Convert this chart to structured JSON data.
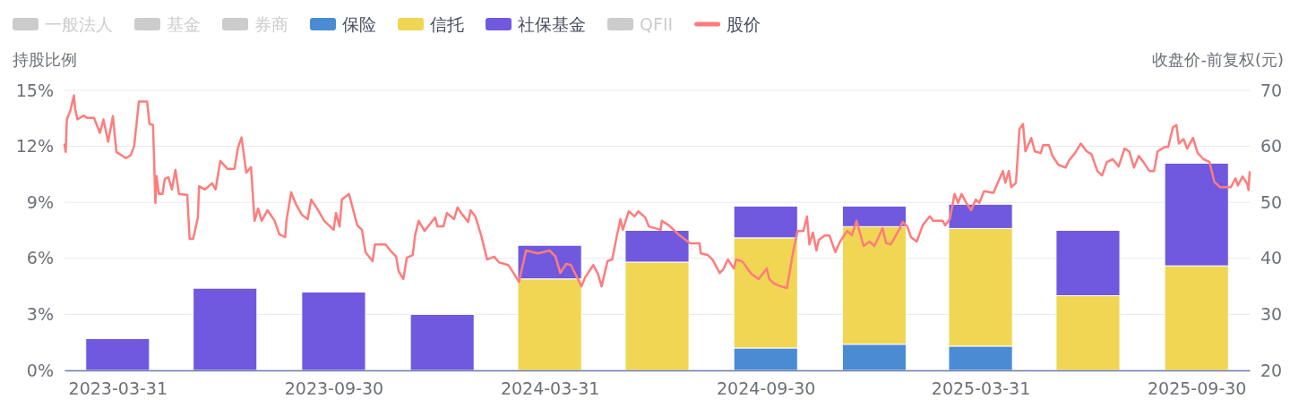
{
  "chart_data": {
    "type": "bar",
    "stacked": true,
    "ylabel": "持股比例",
    "y2label": "收盘价-前复权(元)",
    "x": [
      "2023-03-31",
      "2023-06-30",
      "2023-09-30",
      "2023-12-31",
      "2024-03-31",
      "2024-06-30",
      "2024-09-30",
      "2024-12-31",
      "2025-03-31",
      "2025-06-30",
      "2025-09-30"
    ],
    "xlim": [
      "2023-02-14",
      "2025-11-14"
    ],
    "xticks": [
      "2023-03-31",
      "2023-09-30",
      "2024-03-31",
      "2024-09-30",
      "2025-03-31",
      "2025-09-30"
    ],
    "ylim": [
      0,
      15
    ],
    "yticks": [
      {
        "value": 0,
        "label": "0%"
      },
      {
        "value": 3,
        "label": "3%"
      },
      {
        "value": 6,
        "label": "6%"
      },
      {
        "value": 9,
        "label": "9%"
      },
      {
        "value": 12,
        "label": "12%"
      },
      {
        "value": 15,
        "label": "15%"
      }
    ],
    "y2lim": [
      20,
      70
    ],
    "y2ticks": [
      20,
      30,
      40,
      50,
      60,
      70
    ],
    "grid": "y",
    "legend": "top left",
    "series": [
      {
        "name": "一般法人",
        "color": "#cccccc",
        "values": [
          null,
          null,
          null,
          null,
          null,
          null,
          null,
          null,
          null,
          null,
          null
        ]
      },
      {
        "name": "基金",
        "color": "#cccccc",
        "values": [
          null,
          null,
          null,
          null,
          null,
          null,
          null,
          null,
          null,
          null,
          null
        ]
      },
      {
        "name": "券商",
        "color": "#cccccc",
        "values": [
          null,
          null,
          null,
          null,
          null,
          null,
          null,
          null,
          null,
          null,
          null
        ]
      },
      {
        "name": "保险",
        "color": "#4a8bd4",
        "values": [
          null,
          null,
          null,
          null,
          null,
          null,
          1.2,
          1.4,
          1.3,
          null,
          null
        ]
      },
      {
        "name": "信托",
        "color": "#f0d653",
        "values": [
          null,
          null,
          null,
          null,
          4.9,
          5.8,
          5.9,
          6.3,
          6.3,
          4.0,
          5.6
        ]
      },
      {
        "name": "社保基金",
        "color": "#7059df",
        "values": [
          1.7,
          4.4,
          4.2,
          3.0,
          1.8,
          1.7,
          1.7,
          1.1,
          1.3,
          3.5,
          5.5
        ]
      },
      {
        "name": "QFII",
        "color": "#cccccc",
        "values": [
          null,
          null,
          null,
          null,
          null,
          null,
          null,
          null,
          null,
          null,
          null
        ]
      },
      {
        "name": "股价",
        "type": "line",
        "axis": "y2",
        "color": "#ff7c7c",
        "marker": "none",
        "x": [
          "2023-02-14",
          "2023-02-15",
          "2023-02-16",
          "2023-02-19",
          "2023-02-22",
          "2023-02-23",
          "2023-02-25",
          "2023-03-02",
          "2023-03-05",
          "2023-03-11",
          "2023-03-16",
          "2023-03-19",
          "2023-03-23",
          "2023-03-27",
          "2023-03-30",
          "2023-04-07",
          "2023-04-11",
          "2023-04-14",
          "2023-04-18",
          "2023-04-25",
          "2023-04-27",
          "2023-04-30",
          "2023-05-02",
          "2023-05-03",
          "2023-05-05",
          "2023-05-08",
          "2023-05-10",
          "2023-05-13",
          "2023-05-16",
          "2023-05-19",
          "2023-05-22",
          "2023-05-29",
          "2023-05-31",
          "2023-06-03",
          "2023-06-07",
          "2023-06-08",
          "2023-06-13",
          "2023-06-19",
          "2023-06-22",
          "2023-06-26",
          "2023-07-02",
          "2023-07-08",
          "2023-07-11",
          "2023-07-14",
          "2023-07-18",
          "2023-07-22",
          "2023-07-25",
          "2023-07-28",
          "2023-07-31",
          "2023-08-05",
          "2023-08-11",
          "2023-08-15",
          "2023-08-20",
          "2023-08-21",
          "2023-08-25",
          "2023-08-29",
          "2023-09-03",
          "2023-09-08",
          "2023-09-11",
          "2023-09-16",
          "2023-09-22",
          "2023-09-30",
          "2023-10-02",
          "2023-10-05",
          "2023-10-07",
          "2023-10-13",
          "2023-10-16",
          "2023-10-20",
          "2023-10-24",
          "2023-10-27",
          "2023-11-02",
          "2023-11-04",
          "2023-11-13",
          "2023-11-17",
          "2023-11-22",
          "2023-11-24",
          "2023-11-28",
          "2023-12-01",
          "2023-12-06",
          "2023-12-08",
          "2023-12-11",
          "2023-12-16",
          "2023-12-25",
          "2023-12-27",
          "2024-01-01",
          "2024-01-04",
          "2024-01-10",
          "2024-01-13",
          "2024-01-16",
          "2024-01-22",
          "2024-01-24",
          "2024-01-28",
          "2024-02-02",
          "2024-02-07",
          "2024-02-13",
          "2024-02-17",
          "2024-02-25",
          "2024-03-01",
          "2024-03-05",
          "2024-03-11",
          "2024-03-21",
          "2024-03-31",
          "2024-04-05",
          "2024-04-09",
          "2024-04-14",
          "2024-04-18",
          "2024-04-27",
          "2024-04-30",
          "2024-05-07",
          "2024-05-11",
          "2024-05-14",
          "2024-05-19",
          "2024-05-23",
          "2024-05-27",
          "2024-05-30",
          "2024-06-01",
          "2024-06-06",
          "2024-06-11",
          "2024-06-14",
          "2024-06-20",
          "2024-06-23",
          "2024-07-03",
          "2024-07-04",
          "2024-07-10",
          "2024-07-18",
          "2024-07-28",
          "2024-08-05",
          "2024-08-06",
          "2024-08-12",
          "2024-08-16",
          "2024-08-22",
          "2024-08-25",
          "2024-08-29",
          "2024-09-03",
          "2024-09-05",
          "2024-09-10",
          "2024-09-18",
          "2024-09-24",
          "2024-10-01",
          "2024-10-03",
          "2024-10-07",
          "2024-10-13",
          "2024-10-18",
          "2024-10-23",
          "2024-10-27",
          "2024-11-01",
          "2024-11-04",
          "2024-11-06",
          "2024-11-09",
          "2024-11-12",
          "2024-11-14",
          "2024-11-19",
          "2024-11-23",
          "2024-11-28",
          "2024-12-02",
          "2024-12-08",
          "2024-12-12",
          "2024-12-16",
          "2024-12-22",
          "2024-12-27",
          "2024-12-31",
          "2025-01-03",
          "2025-01-07",
          "2025-01-10",
          "2025-01-14",
          "2025-01-21",
          "2025-01-24",
          "2025-01-28",
          "2025-01-31",
          "2025-02-05",
          "2025-02-10",
          "2025-02-16",
          "2025-02-19",
          "2025-02-27",
          "2025-03-01",
          "2025-03-05",
          "2025-03-09",
          "2025-03-12",
          "2025-03-15",
          "2025-03-19",
          "2025-03-23",
          "2025-03-27",
          "2025-03-30",
          "2025-04-03",
          "2025-04-11",
          "2025-04-15",
          "2025-04-19",
          "2025-04-21",
          "2025-04-24",
          "2025-04-26",
          "2025-04-30",
          "2025-05-03",
          "2025-05-06",
          "2025-05-08",
          "2025-05-13",
          "2025-05-16",
          "2025-05-21",
          "2025-05-23",
          "2025-05-28",
          "2025-05-31",
          "2025-06-05",
          "2025-06-11",
          "2025-06-14",
          "2025-06-19",
          "2025-06-24",
          "2025-06-29",
          "2025-07-03",
          "2025-07-08",
          "2025-07-12",
          "2025-07-16",
          "2025-07-21",
          "2025-07-26",
          "2025-07-31",
          "2025-08-04",
          "2025-08-08",
          "2025-08-12",
          "2025-08-16",
          "2025-08-21",
          "2025-08-25",
          "2025-08-28",
          "2025-09-03",
          "2025-09-06",
          "2025-09-10",
          "2025-09-13",
          "2025-09-15",
          "2025-09-19",
          "2025-09-22",
          "2025-09-27",
          "2025-10-01",
          "2025-10-06",
          "2025-10-11",
          "2025-10-15",
          "2025-10-20",
          "2025-10-29",
          "2025-11-02",
          "2025-11-04",
          "2025-11-08",
          "2025-11-12",
          "2025-11-13",
          "2025-11-14"
        ],
        "values": [
          60.3,
          59.0,
          64.8,
          66.4,
          69.1,
          66.7,
          64.8,
          65.5,
          65.1,
          65.1,
          62.4,
          64.8,
          60.8,
          65.4,
          59.0,
          57.9,
          58.4,
          60.0,
          68.0,
          68.0,
          64.0,
          63.8,
          49.9,
          54.7,
          51.5,
          51.5,
          54.2,
          54.5,
          52.3,
          55.8,
          51.5,
          51.3,
          43.5,
          43.5,
          47.3,
          52.9,
          52.3,
          53.4,
          52.3,
          57.4,
          56.0,
          56.0,
          59.8,
          61.6,
          55.3,
          56.3,
          46.7,
          48.9,
          46.7,
          48.6,
          46.7,
          44.3,
          43.8,
          46.7,
          51.8,
          49.7,
          47.8,
          47.0,
          50.5,
          48.9,
          46.7,
          45.1,
          48.1,
          45.7,
          50.5,
          51.5,
          49.1,
          45.9,
          45.1,
          41.1,
          39.5,
          42.5,
          42.5,
          41.4,
          40.3,
          37.7,
          36.3,
          40.1,
          40.6,
          44.1,
          46.7,
          44.9,
          47.3,
          45.7,
          45.7,
          48.1,
          47.0,
          49.1,
          48.1,
          46.5,
          48.6,
          47.5,
          44.1,
          39.8,
          40.3,
          39.3,
          38.8,
          37.2,
          35.8,
          41.4,
          40.9,
          41.4,
          40.3,
          37.4,
          39.0,
          38.8,
          35.0,
          36.6,
          38.8,
          37.2,
          35.0,
          39.5,
          39.8,
          44.1,
          47.0,
          45.1,
          48.4,
          47.5,
          48.4,
          47.3,
          45.7,
          45.1,
          46.7,
          45.9,
          44.3,
          42.7,
          42.7,
          40.9,
          40.6,
          39.8,
          37.4,
          38.0,
          39.8,
          38.2,
          39.8,
          39.5,
          37.2,
          36.3,
          38.2,
          36.3,
          35.5,
          35.0,
          34.7,
          40.9,
          44.9,
          44.9,
          47.5,
          42.5,
          44.6,
          41.4,
          43.3,
          44.1,
          44.1,
          41.1,
          43.0,
          44.9,
          44.1,
          46.7,
          42.2,
          43.0,
          42.2,
          43.5,
          45.4,
          42.7,
          42.5,
          45.1,
          46.5,
          45.7,
          43.8,
          43.0,
          45.9,
          47.5,
          46.7,
          46.7,
          45.9,
          47.0,
          51.5,
          49.9,
          51.5,
          49.9,
          48.6,
          50.5,
          49.9,
          52.0,
          51.7,
          53.7,
          55.6,
          53.5,
          55.6,
          52.7,
          53.5,
          63.1,
          64.0,
          59.1,
          61.5,
          59.1,
          58.8,
          60.2,
          60.2,
          58.3,
          56.7,
          56.2,
          57.5,
          58.8,
          60.5,
          59.1,
          58.6,
          55.6,
          54.8,
          57.2,
          57.7,
          56.4,
          59.6,
          59.1,
          56.2,
          58.3,
          57.2,
          55.6,
          55.6,
          59.1,
          59.9,
          59.9,
          63.4,
          63.8,
          60.5,
          61.3,
          59.6,
          61.5,
          58.8,
          57.7,
          57.2,
          53.7,
          52.7,
          52.7,
          54.3,
          53.0,
          54.6,
          53.3,
          52.2,
          55.4
        ]
      }
    ]
  }
}
